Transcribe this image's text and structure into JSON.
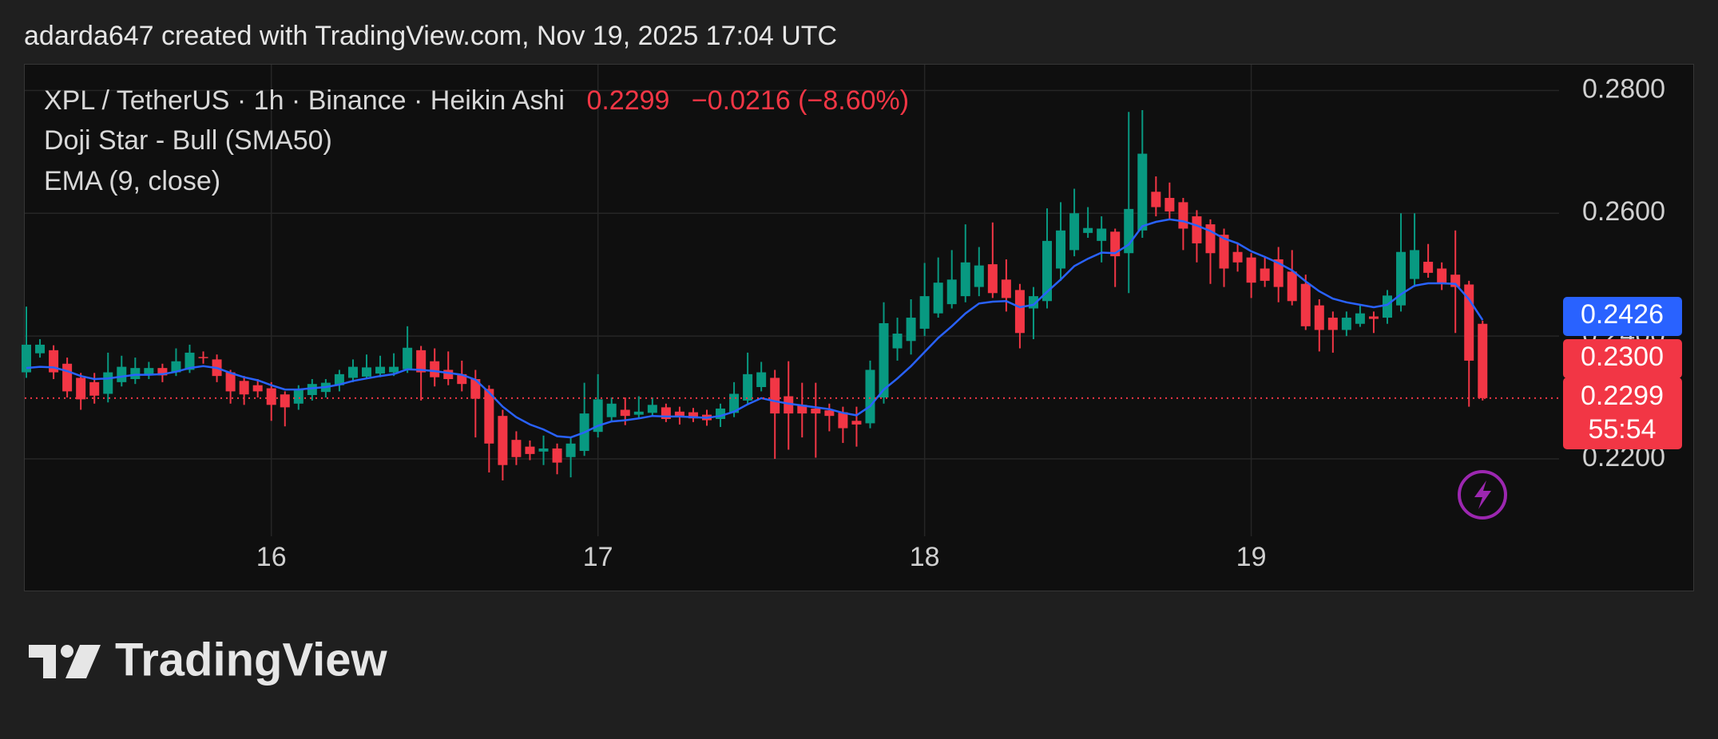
{
  "header": {
    "attribution": "adarda647 created with TradingView.com, Nov 19, 2025 17:04 UTC"
  },
  "chart_data": {
    "type": "candlestick",
    "legend": {
      "symbol": "XPL / TetherUS · 1h · Binance · Heikin Ashi",
      "price": "0.2299",
      "change": "−0.0216 (−8.60%)",
      "indicators": [
        "Doji Star - Bull (SMA50)",
        "EMA (9, close)"
      ]
    },
    "categories": [
      null,
      null,
      null,
      null,
      null,
      null,
      null,
      null,
      null,
      null,
      null,
      null,
      null,
      null,
      null,
      null,
      null,
      null,
      "16",
      null,
      null,
      null,
      null,
      null,
      null,
      null,
      null,
      null,
      null,
      null,
      null,
      null,
      null,
      null,
      null,
      null,
      null,
      null,
      null,
      null,
      null,
      null,
      "17",
      null,
      null,
      null,
      null,
      null,
      null,
      null,
      null,
      null,
      null,
      null,
      null,
      null,
      null,
      null,
      null,
      null,
      null,
      null,
      null,
      null,
      null,
      null,
      "18",
      null,
      null,
      null,
      null,
      null,
      null,
      null,
      null,
      null,
      null,
      null,
      null,
      null,
      null,
      null,
      null,
      null,
      null,
      null,
      null,
      null,
      null,
      null,
      "19",
      null,
      null,
      null,
      null,
      null,
      null,
      null,
      null,
      null,
      null,
      null,
      null,
      null,
      null,
      null,
      null,
      null
    ],
    "up_color": "#089981",
    "down_color": "#f23645",
    "open": [
      0.2341,
      0.2372,
      0.2377,
      0.2355,
      0.2332,
      0.2325,
      0.2306,
      0.2325,
      0.233,
      0.2336,
      0.2348,
      0.2341,
      0.2345,
      0.2366,
      0.2362,
      0.2341,
      0.2327,
      0.232,
      0.2315,
      0.2305,
      0.229,
      0.2304,
      0.2309,
      0.232,
      0.2332,
      0.2334,
      0.2339,
      0.2341,
      0.2346,
      0.2377,
      0.2359,
      0.2345,
      0.2338,
      0.233,
      0.2314,
      0.227,
      0.2231,
      0.222,
      0.2212,
      0.2217,
      0.2203,
      0.2213,
      0.2244,
      0.2268,
      0.228,
      0.2272,
      0.2275,
      0.2284,
      0.2277,
      0.2276,
      0.2272,
      0.2265,
      0.2275,
      0.2295,
      0.2317,
      0.2332,
      0.2302,
      0.2288,
      0.2282,
      0.2279,
      0.2276,
      0.2262,
      0.2258,
      0.23,
      0.238,
      0.2392,
      0.2412,
      0.2437,
      0.2452,
      0.2465,
      0.248,
      0.2517,
      0.2492,
      0.2475,
      0.2445,
      0.2457,
      0.251,
      0.254,
      0.2568,
      0.2555,
      0.257,
      0.2535,
      0.2572,
      0.2635,
      0.2625,
      0.2618,
      0.2595,
      0.2582,
      0.2565,
      0.2537,
      0.2528,
      0.251,
      0.2525,
      0.2505,
      0.2485,
      0.245,
      0.243,
      0.241,
      0.242,
      0.2432,
      0.243,
      0.245,
      0.2493,
      0.2521,
      0.251,
      0.25,
      0.2484,
      0.242
    ],
    "high": [
      0.2448,
      0.2395,
      0.2385,
      0.2365,
      0.234,
      0.234,
      0.2373,
      0.2368,
      0.2365,
      0.2358,
      0.2355,
      0.238,
      0.2386,
      0.2375,
      0.237,
      0.2345,
      0.2335,
      0.233,
      0.2325,
      0.231,
      0.232,
      0.233,
      0.233,
      0.2345,
      0.2362,
      0.237,
      0.2368,
      0.2372,
      0.2416,
      0.2384,
      0.238,
      0.2375,
      0.236,
      0.2345,
      0.232,
      0.228,
      0.2245,
      0.223,
      0.2238,
      0.2225,
      0.2235,
      0.2324,
      0.2338,
      0.23,
      0.23,
      0.2302,
      0.23,
      0.229,
      0.2285,
      0.2283,
      0.228,
      0.229,
      0.2325,
      0.2373,
      0.2358,
      0.2345,
      0.2359,
      0.2324,
      0.2324,
      0.229,
      0.2285,
      0.2285,
      0.236,
      0.2455,
      0.243,
      0.246,
      0.2519,
      0.2528,
      0.254,
      0.2582,
      0.2545,
      0.2585,
      0.2525,
      0.2485,
      0.248,
      0.2608,
      0.2618,
      0.264,
      0.261,
      0.2595,
      0.2575,
      0.2765,
      0.2768,
      0.266,
      0.265,
      0.2625,
      0.2605,
      0.259,
      0.2575,
      0.255,
      0.2535,
      0.253,
      0.2545,
      0.254,
      0.25,
      0.246,
      0.244,
      0.244,
      0.245,
      0.244,
      0.2475,
      0.26,
      0.26,
      0.255,
      0.252,
      0.2572,
      0.249,
      0.2425
    ],
    "low": [
      0.2332,
      0.2365,
      0.233,
      0.23,
      0.228,
      0.229,
      0.2292,
      0.2318,
      0.2322,
      0.233,
      0.2325,
      0.2335,
      0.234,
      0.2355,
      0.2325,
      0.229,
      0.2288,
      0.23,
      0.2262,
      0.2253,
      0.228,
      0.2295,
      0.23,
      0.231,
      0.2325,
      0.233,
      0.2333,
      0.2335,
      0.234,
      0.2295,
      0.2318,
      0.232,
      0.231,
      0.2235,
      0.2178,
      0.2165,
      0.219,
      0.2198,
      0.219,
      0.2175,
      0.217,
      0.2205,
      0.2235,
      0.226,
      0.2255,
      0.2265,
      0.227,
      0.226,
      0.2256,
      0.226,
      0.2254,
      0.2252,
      0.2268,
      0.2288,
      0.231,
      0.22,
      0.2215,
      0.2235,
      0.2202,
      0.2245,
      0.2226,
      0.222,
      0.225,
      0.229,
      0.236,
      0.237,
      0.24,
      0.243,
      0.2445,
      0.2455,
      0.2465,
      0.2462,
      0.244,
      0.238,
      0.2395,
      0.2445,
      0.249,
      0.253,
      0.256,
      0.252,
      0.248,
      0.247,
      0.256,
      0.2595,
      0.259,
      0.254,
      0.252,
      0.2485,
      0.248,
      0.2505,
      0.2462,
      0.248,
      0.2455,
      0.245,
      0.241,
      0.2375,
      0.2373,
      0.24,
      0.2415,
      0.2405,
      0.242,
      0.244,
      0.248,
      0.2495,
      0.2475,
      0.2405,
      0.2285,
      0.2295
    ],
    "close": [
      0.2386,
      0.2386,
      0.2341,
      0.231,
      0.2297,
      0.2303,
      0.2341,
      0.235,
      0.2348,
      0.2348,
      0.2336,
      0.2359,
      0.2373,
      0.2364,
      0.2335,
      0.231,
      0.2305,
      0.231,
      0.2288,
      0.2284,
      0.2313,
      0.2322,
      0.2324,
      0.2338,
      0.235,
      0.2349,
      0.235,
      0.235,
      0.2381,
      0.2341,
      0.2333,
      0.233,
      0.2322,
      0.2298,
      0.2225,
      0.219,
      0.2203,
      0.2208,
      0.2217,
      0.2194,
      0.2225,
      0.2274,
      0.2297,
      0.229,
      0.227,
      0.2277,
      0.2288,
      0.2265,
      0.2268,
      0.2266,
      0.2263,
      0.2282,
      0.2306,
      0.2338,
      0.2341,
      0.2274,
      0.2274,
      0.2274,
      0.2274,
      0.227,
      0.225,
      0.2256,
      0.2345,
      0.2421,
      0.2404,
      0.243,
      0.2465,
      0.2487,
      0.2492,
      0.252,
      0.2515,
      0.247,
      0.2462,
      0.2405,
      0.2465,
      0.2555,
      0.2572,
      0.26,
      0.2576,
      0.2575,
      0.253,
      0.2607,
      0.2697,
      0.261,
      0.2603,
      0.2575,
      0.2551,
      0.2535,
      0.251,
      0.252,
      0.2487,
      0.249,
      0.248,
      0.2457,
      0.2416,
      0.241,
      0.241,
      0.243,
      0.2437,
      0.2428,
      0.2466,
      0.2537,
      0.254,
      0.2503,
      0.2487,
      0.248,
      0.236,
      0.2299
    ],
    "lines": [
      {
        "name": "EMA (9, close)",
        "color": "#2962ff",
        "values": [
          0.2348,
          0.235,
          0.2349,
          0.2343,
          0.2335,
          0.233,
          0.2331,
          0.2334,
          0.2337,
          0.2337,
          0.2338,
          0.2342,
          0.2348,
          0.2351,
          0.2348,
          0.234,
          0.2333,
          0.2328,
          0.232,
          0.2313,
          0.2313,
          0.2315,
          0.2317,
          0.2321,
          0.2327,
          0.2331,
          0.2335,
          0.2338,
          0.2346,
          0.2345,
          0.2343,
          0.234,
          0.2337,
          0.2329,
          0.2308,
          0.2285,
          0.2268,
          0.2256,
          0.2248,
          0.2237,
          0.2235,
          0.2243,
          0.2254,
          0.2261,
          0.2263,
          0.2266,
          0.227,
          0.2269,
          0.2269,
          0.2268,
          0.2267,
          0.227,
          0.2277,
          0.2289,
          0.2299,
          0.2294,
          0.229,
          0.2287,
          0.2284,
          0.2281,
          0.2275,
          0.2271,
          0.2286,
          0.2313,
          0.2331,
          0.2351,
          0.2374,
          0.2397,
          0.2416,
          0.2437,
          0.2453,
          0.2456,
          0.2457,
          0.2447,
          0.2451,
          0.2472,
          0.2492,
          0.2514,
          0.2526,
          0.2536,
          0.2535,
          0.2549,
          0.2579,
          0.2586,
          0.259,
          0.2587,
          0.258,
          0.2571,
          0.2559,
          0.2551,
          0.2538,
          0.2529,
          0.2519,
          0.2507,
          0.2489,
          0.2473,
          0.2461,
          0.2455,
          0.2451,
          0.2447,
          0.2451,
          0.2468,
          0.2482,
          0.2486,
          0.2486,
          0.2485,
          0.246,
          0.2426
        ]
      }
    ],
    "price_tags": [
      {
        "value": 0.2426,
        "color": "#2962ff"
      },
      {
        "value": 0.23,
        "label": "0.2300",
        "color": "#f23645"
      },
      {
        "value": 0.2299,
        "color": "#f23645",
        "countdown": "55:54",
        "line": true
      }
    ],
    "ylim": [
      0.2074,
      0.2842
    ],
    "yticks": [
      {
        "value": 0.22,
        "label": "0.2200"
      },
      {
        "value": 0.24,
        "label": "0.2400"
      },
      {
        "value": 0.26,
        "label": "0.2600"
      },
      {
        "value": 0.28,
        "label": "0.2800"
      }
    ],
    "grid": true
  },
  "footer": {
    "logo_text": "TradingView"
  }
}
